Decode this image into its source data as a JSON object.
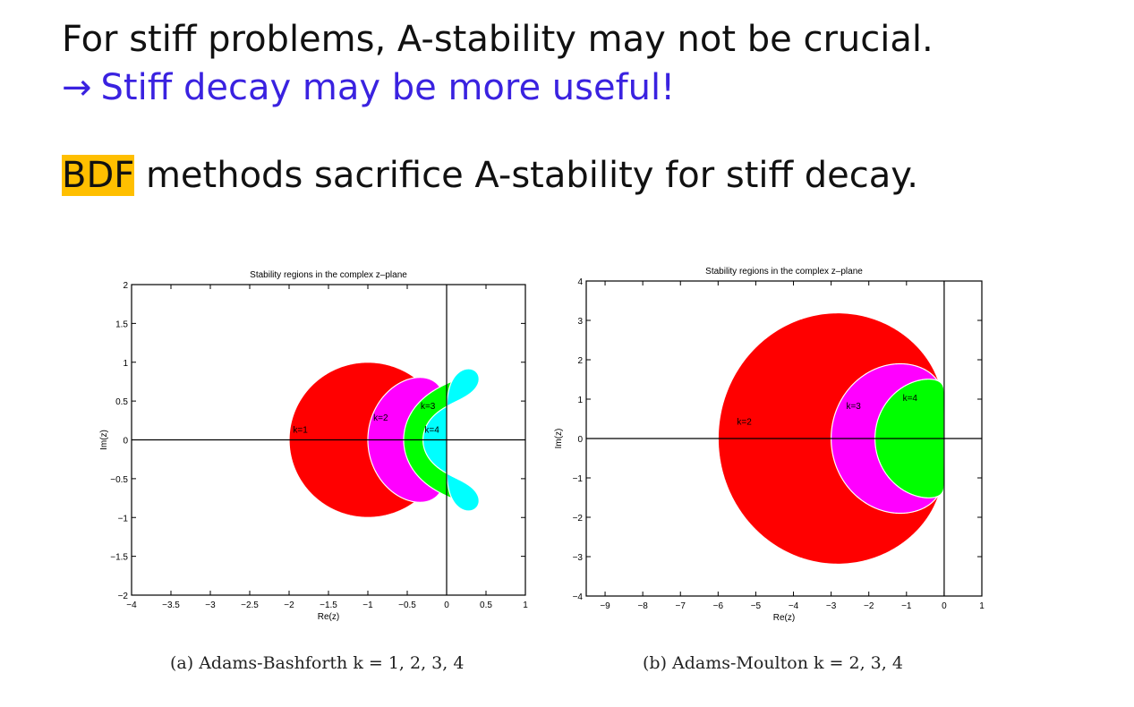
{
  "slide": {
    "line1": "For stiff problems, A-stability may not be crucial.",
    "arrow": "→",
    "line2": "Stiff decay may be more useful!",
    "highlight": "BDF",
    "line3_rest": " methods sacrifice A-stability for stiff decay."
  },
  "colors": {
    "accent_text": "#3a22e0",
    "highlight": "#ffbf00",
    "region_red": "#ff0000",
    "region_magenta": "#ff00ff",
    "region_green": "#00ff00",
    "region_cyan": "#00ffff"
  },
  "chart_data": [
    {
      "type": "area",
      "title": "Stability regions in the complex z–plane",
      "xlabel": "Re(z)",
      "ylabel": "Im(z)",
      "xlim": [
        -4,
        1
      ],
      "ylim": [
        -2,
        2
      ],
      "xticks": [
        -4,
        -3.5,
        -3,
        -2.5,
        -2,
        -1.5,
        -1,
        -0.5,
        0,
        0.5,
        1
      ],
      "xtick_labels": [
        "−4",
        "−3.5",
        "−3",
        "−2.5",
        "−2",
        "−1.5",
        "−1",
        "−0.5",
        "0",
        "0.5",
        "1"
      ],
      "yticks": [
        -2,
        -1.5,
        -1,
        -0.5,
        0,
        0.5,
        1,
        1.5,
        2
      ],
      "ytick_labels": [
        "−2",
        "−1.5",
        "−1",
        "−0.5",
        "0",
        "0.5",
        "1",
        "1.5",
        "2"
      ],
      "series": [
        {
          "name": "k=1",
          "method": "ab",
          "k": 1,
          "label_at": [
            -1.95,
            0.09
          ]
        },
        {
          "name": "k=2",
          "method": "ab",
          "k": 2,
          "label_at": [
            -0.93,
            0.25
          ]
        },
        {
          "name": "k=3",
          "method": "ab",
          "k": 3,
          "label_at": [
            -0.33,
            0.4
          ]
        },
        {
          "name": "k=4",
          "method": "ab",
          "k": 4,
          "label_at": [
            -0.28,
            0.09
          ]
        }
      ],
      "caption": "(a) Adams-Bashforth k = 1, 2, 3, 4"
    },
    {
      "type": "area",
      "title": "Stability regions in the complex z–plane",
      "xlabel": "Re(z)",
      "ylabel": "Im(z)",
      "xlim": [
        -9.5,
        1
      ],
      "ylim": [
        -4,
        4
      ],
      "xticks": [
        -9,
        -8,
        -7,
        -6,
        -5,
        -4,
        -3,
        -2,
        -1,
        0,
        1
      ],
      "xtick_labels": [
        "−9",
        "−8",
        "−7",
        "−6",
        "−5",
        "−4",
        "−3",
        "−2",
        "−1",
        "0",
        "1"
      ],
      "yticks": [
        -4,
        -3,
        -2,
        -1,
        0,
        1,
        2,
        3,
        4
      ],
      "ytick_labels": [
        "−4",
        "−3",
        "−2",
        "−1",
        "0",
        "1",
        "2",
        "3",
        "4"
      ],
      "series": [
        {
          "name": "k=2",
          "method": "am",
          "k": 2,
          "label_at": [
            -5.5,
            0.35
          ]
        },
        {
          "name": "k=3",
          "method": "am",
          "k": 3,
          "label_at": [
            -2.6,
            0.75
          ]
        },
        {
          "name": "k=4",
          "method": "am",
          "k": 4,
          "label_at": [
            -1.1,
            0.95
          ]
        }
      ],
      "caption": "(b) Adams-Moulton k = 2, 3, 4"
    }
  ]
}
